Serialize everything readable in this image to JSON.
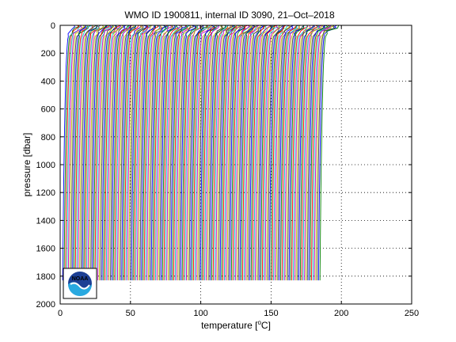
{
  "chart_data": {
    "type": "line",
    "title": "WMO ID 1900811, internal ID 3090, 21–Oct–2018",
    "xlabel_prefix": "temperature [",
    "xlabel_unit_sup": "o",
    "xlabel_suffix": "C]",
    "ylabel": "pressure [dbar]",
    "xlim": [
      0,
      250
    ],
    "ylim": [
      0,
      2000
    ],
    "y_reversed": true,
    "x_ticks": [
      "0",
      "50",
      "100",
      "150",
      "200",
      "250"
    ],
    "x_tick_values": [
      0,
      50,
      100,
      150,
      200,
      250
    ],
    "y_ticks": [
      "0",
      "200",
      "400",
      "600",
      "800",
      "1000",
      "1200",
      "1400",
      "1600",
      "1800",
      "2000"
    ],
    "y_tick_values": [
      0,
      200,
      400,
      600,
      800,
      1000,
      1200,
      1400,
      1600,
      1800,
      2000
    ],
    "grid": "dotted",
    "legend": "none",
    "series_summary": {
      "profile_count": 184,
      "offset_step_degC": 1,
      "max_pressure_dbar": 1830,
      "colors": [
        "#0000ff",
        "#008000",
        "#ff0000",
        "#00bfbf",
        "#bf00bf",
        "#bfbf00",
        "#404040"
      ]
    },
    "representative_profile": {
      "pressure": [
        0,
        10,
        20,
        40,
        60,
        80,
        100,
        150,
        200,
        300,
        400,
        600,
        800,
        1000,
        1200,
        1400,
        1600,
        1800,
        1830
      ],
      "temperature": [
        11.5,
        11.3,
        10.5,
        8.0,
        6.5,
        5.8,
        5.4,
        5.0,
        4.7,
        4.2,
        3.9,
        3.4,
        3.0,
        2.7,
        2.4,
        2.2,
        2.0,
        1.8,
        1.8
      ]
    },
    "logo_label": "NOAA"
  }
}
